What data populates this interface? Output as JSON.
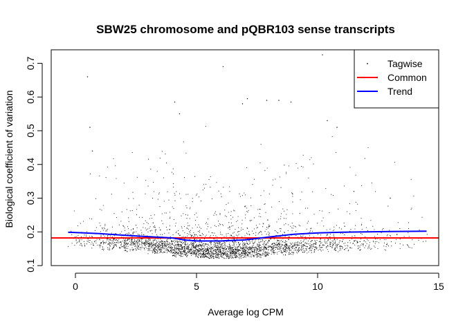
{
  "chart_data": {
    "type": "scatter",
    "title": "SBW25 chromosome and pQBR103 sense transcripts",
    "xlabel": "Average log CPM",
    "ylabel": "Biological coefficient of variation",
    "xlim": [
      -1.0,
      15.0
    ],
    "ylim": [
      0.1,
      0.74
    ],
    "xticks": [
      0,
      5,
      10,
      15
    ],
    "yticks": [
      0.1,
      0.2,
      0.3,
      0.4,
      0.5,
      0.6,
      0.7
    ],
    "grid": false,
    "legend": {
      "position": "top-right",
      "entries": [
        {
          "label": "Tagwise",
          "kind": "point",
          "color": "#000000"
        },
        {
          "label": "Common",
          "kind": "line",
          "color": "#ff0000"
        },
        {
          "label": "Trend",
          "kind": "line",
          "color": "#0000ff"
        }
      ]
    },
    "series": [
      {
        "name": "Tagwise",
        "kind": "points",
        "color": "#000000",
        "highlighted_points": {
          "x": [
            0.5,
            0.6,
            0.7,
            4.1,
            4.3,
            6.1,
            6.9,
            7.1,
            7.9,
            8.4,
            8.9,
            10.2,
            10.4,
            10.8,
            11.5,
            13.0
          ],
          "y": [
            0.66,
            0.51,
            0.44,
            0.585,
            0.55,
            0.69,
            0.58,
            0.595,
            0.59,
            0.59,
            0.585,
            0.725,
            0.53,
            0.51,
            0.32,
            0.3
          ]
        },
        "density_profile": {
          "x": [
            -0.3,
            0.5,
            1.5,
            2.5,
            3.5,
            4.5,
            5.5,
            6.5,
            7.5,
            8.5,
            9.5,
            10.5,
            11.5,
            12.5,
            13.5,
            14.5
          ],
          "median_bcv": [
            0.19,
            0.185,
            0.18,
            0.175,
            0.17,
            0.16,
            0.155,
            0.155,
            0.158,
            0.165,
            0.17,
            0.175,
            0.178,
            0.18,
            0.182,
            0.185
          ],
          "relative_density": [
            0.05,
            0.15,
            0.35,
            0.55,
            0.75,
            0.95,
            1.0,
            0.95,
            0.8,
            0.6,
            0.45,
            0.3,
            0.2,
            0.12,
            0.07,
            0.04
          ]
        }
      },
      {
        "name": "Common",
        "kind": "hline",
        "color": "#ff0000",
        "y": 0.182
      },
      {
        "name": "Trend",
        "kind": "line",
        "color": "#0000ff",
        "x": [
          -0.3,
          1.0,
          2.0,
          3.0,
          4.0,
          4.5,
          5.0,
          6.0,
          7.0,
          8.0,
          9.0,
          10.0,
          11.0,
          12.0,
          13.0,
          14.5
        ],
        "y": [
          0.199,
          0.195,
          0.19,
          0.186,
          0.182,
          0.176,
          0.173,
          0.173,
          0.176,
          0.185,
          0.193,
          0.197,
          0.199,
          0.2,
          0.201,
          0.202
        ]
      }
    ]
  }
}
